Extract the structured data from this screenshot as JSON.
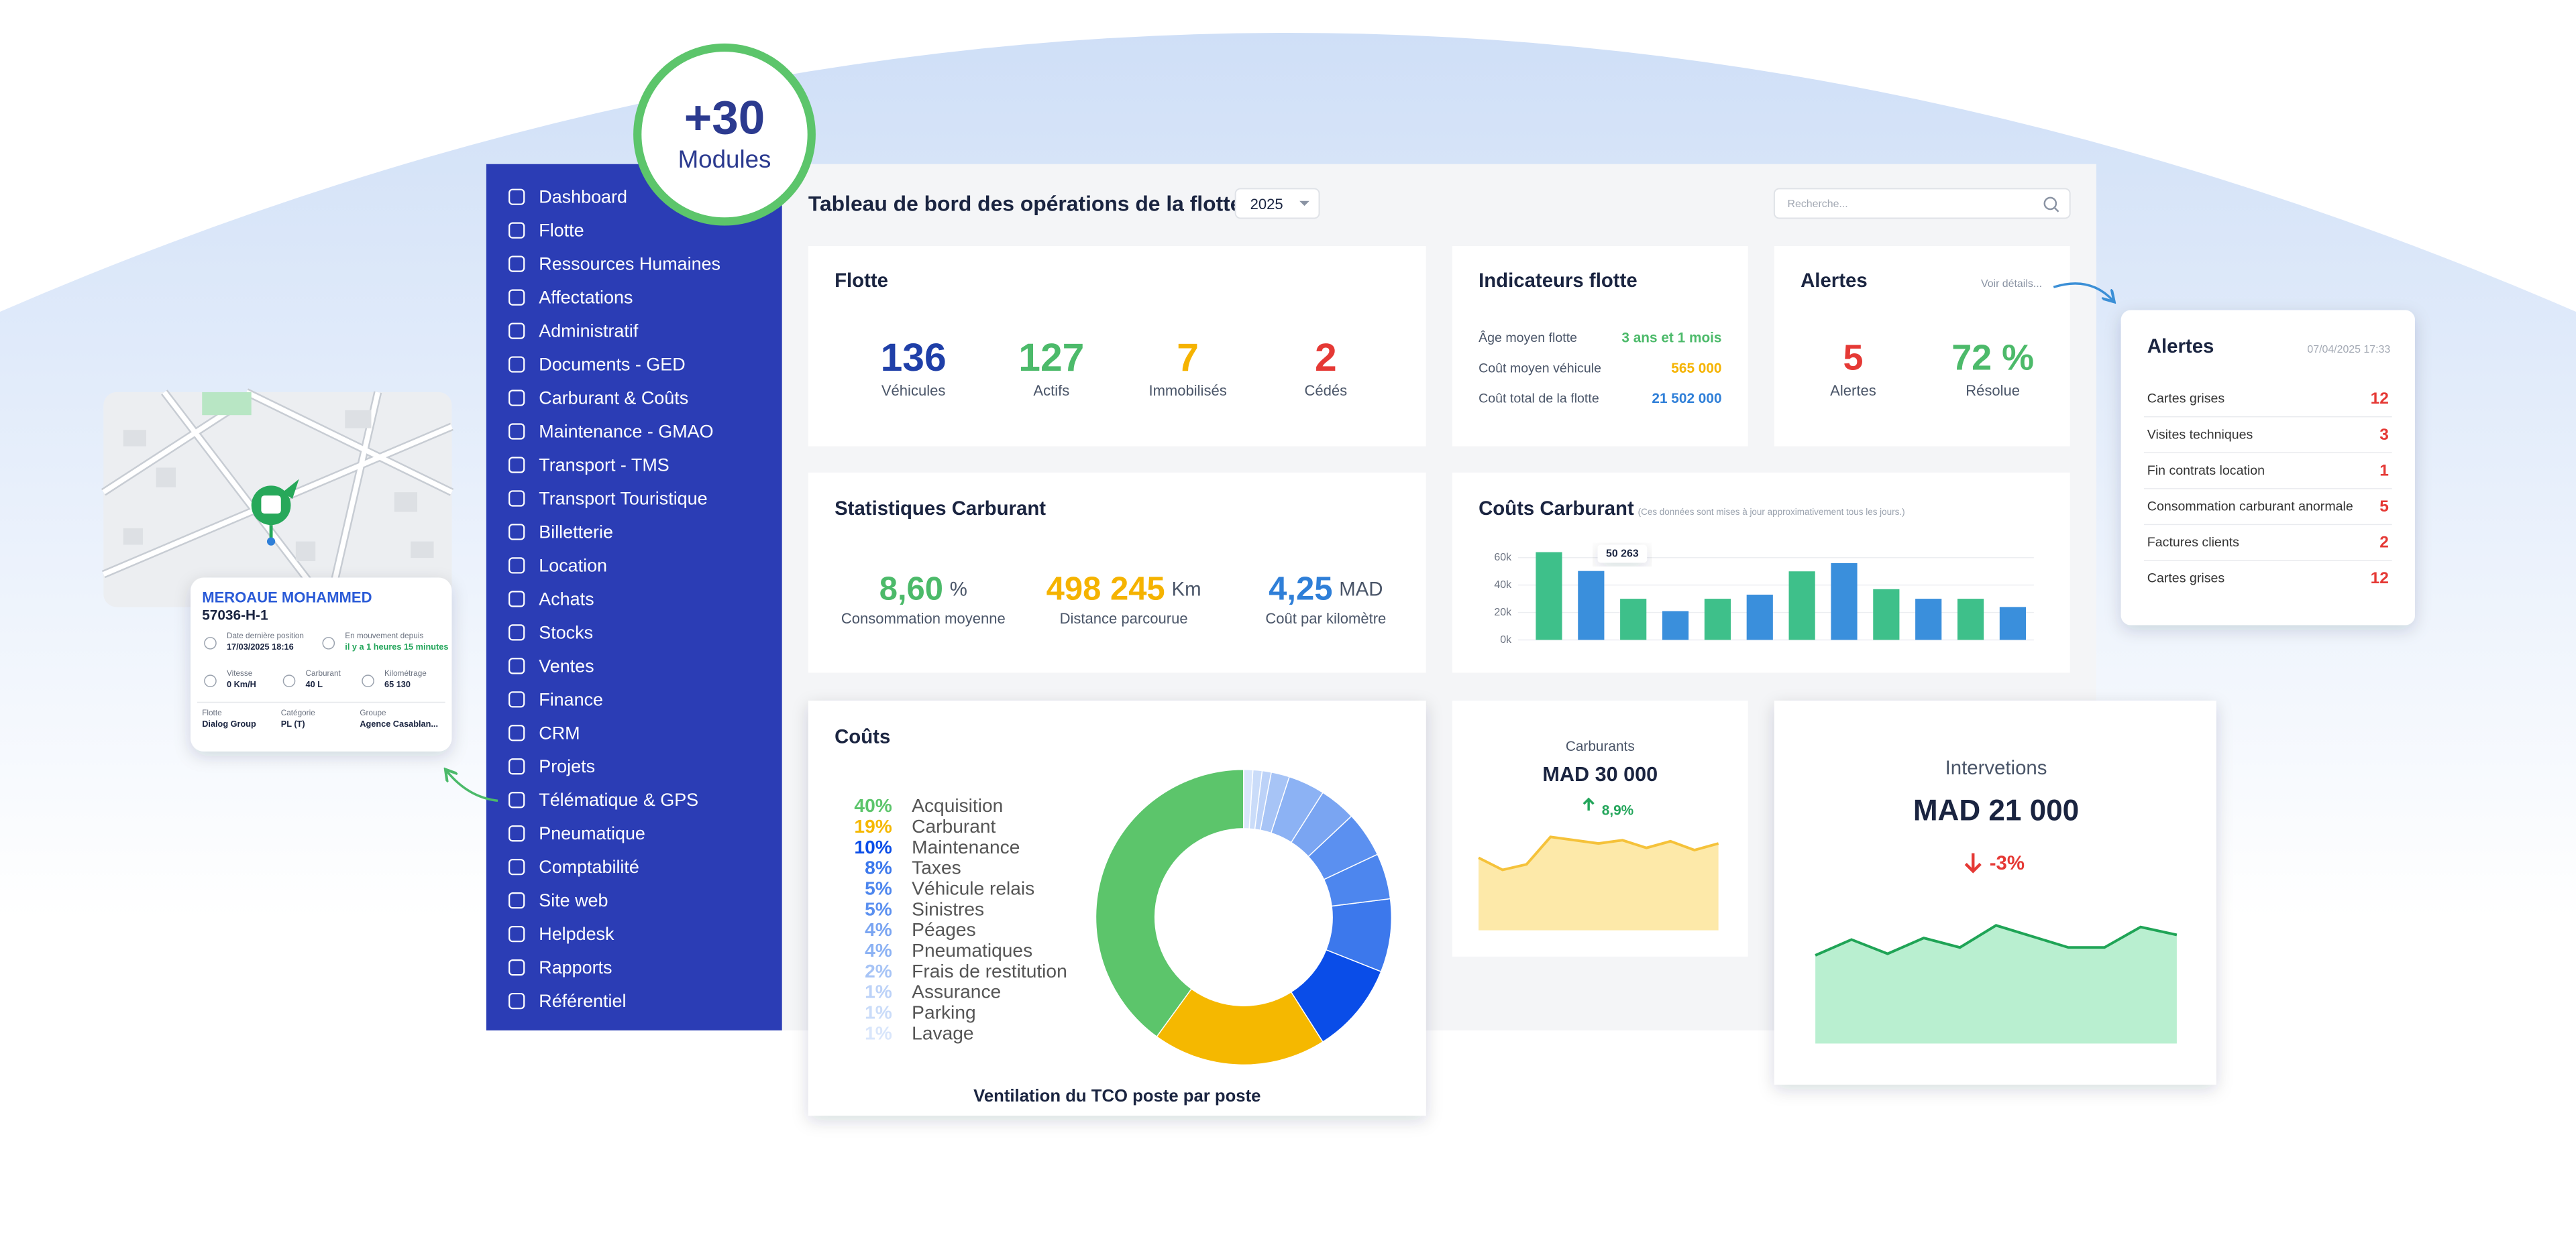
{
  "badge": {
    "value": "+30",
    "label": "Modules"
  },
  "sidebar": {
    "items": [
      "Dashboard",
      "Flotte",
      "Ressources Humaines",
      "Affectations",
      "Administratif",
      "Documents - GED",
      "Carburant & Coûts",
      "Maintenance - GMAO",
      "Transport - TMS",
      "Transport Touristique",
      "Billetterie",
      "Location",
      "Achats",
      "Stocks",
      "Ventes",
      "Finance",
      "CRM",
      "Projets",
      "Télématique & GPS",
      "Pneumatique",
      "Comptabilité",
      "Site web",
      "Helpdesk",
      "Rapports",
      "Référentiel"
    ]
  },
  "header": {
    "title": "Tableau de bord des opérations de la flotte",
    "year": "2025",
    "search_placeholder": "Recherche..."
  },
  "fleet_card": {
    "title": "Flotte",
    "stats": [
      {
        "value": "136",
        "label": "Véhicules",
        "color": "#1f3fa8"
      },
      {
        "value": "127",
        "label": "Actifs",
        "color": "#4cba6a"
      },
      {
        "value": "7",
        "label": "Immobilisés",
        "color": "#f5b300"
      },
      {
        "value": "2",
        "label": "Cédés",
        "color": "#e53935"
      }
    ]
  },
  "indicators_card": {
    "title": "Indicateurs flotte",
    "rows": [
      {
        "label": "Âge moyen flotte",
        "value": "3 ans et 1 mois",
        "color": "#4cba6a"
      },
      {
        "label": "Coût moyen véhicule",
        "value": "565 000",
        "color": "#f5b300"
      },
      {
        "label": "Coût total de la flotte",
        "value": "21 502 000",
        "color": "#2f7fd8"
      }
    ]
  },
  "alerts_card": {
    "title": "Alertes",
    "link": "Voir détails...",
    "stats": [
      {
        "value": "5",
        "label": "Alertes",
        "color": "#e53935"
      },
      {
        "value": "72 %",
        "label": "Résolue",
        "color": "#4cba6a"
      }
    ]
  },
  "fuel_stats_card": {
    "title": "Statistiques Carburant",
    "stats": [
      {
        "value": "8,60",
        "unit": "%",
        "label": "Consommation moyenne",
        "color": "#4cba6a"
      },
      {
        "value": "498 245",
        "unit": "Km",
        "label": "Distance parcourue",
        "color": "#f5b300"
      },
      {
        "value": "4,25",
        "unit": "MAD",
        "label": "Coût par kilomètre",
        "color": "#2f7fd8"
      }
    ]
  },
  "fuel_card": {
    "title": "Carburants",
    "amount": "MAD 30 000",
    "trend": "8,9%"
  },
  "interventions_card": {
    "title": "Intervetions",
    "amount": "MAD 21 000",
    "trend": "-3%"
  },
  "alerts_popup": {
    "title": "Alertes",
    "date": "07/04/2025 17:33",
    "rows": [
      {
        "label": "Cartes grises",
        "value": "12"
      },
      {
        "label": "Visites techniques",
        "value": "3"
      },
      {
        "label": "Fin contrats location",
        "value": "1"
      },
      {
        "label": "Consommation carburant anormale",
        "value": "5"
      },
      {
        "label": "Factures clients",
        "value": "2"
      },
      {
        "label": "Cartes grises",
        "value": "12"
      }
    ]
  },
  "vehicle_card": {
    "driver": "MEROAUE MOHAMMED",
    "plate": "57036-H-1",
    "fields": [
      {
        "label": "Date dernière position",
        "value": "17/03/2025 18:16"
      },
      {
        "label": "En mouvement depuis",
        "value": "il y a 1 heures 15 minutes"
      },
      {
        "label": "Vitesse",
        "value": "0 Km/H"
      },
      {
        "label": "Carburant",
        "value": "40 L"
      },
      {
        "label": "Kilométrage",
        "value": "65 130"
      },
      {
        "label": "Flotte",
        "value": "Dialog Group"
      },
      {
        "label": "Catégorie",
        "value": "PL (T)"
      },
      {
        "label": "Groupe",
        "value": "Agence Casablan..."
      }
    ]
  },
  "chart_data": [
    {
      "type": "bar",
      "title": "Coûts Carburant",
      "subtitle": "(Ces données sont mises à jour approximativement tous les jours.)",
      "values": [
        64000,
        50263,
        30000,
        21000,
        30000,
        33000,
        50000,
        56000,
        37000,
        30000,
        30000,
        24000
      ],
      "value_labels": [
        null,
        "50 263",
        null,
        null,
        null,
        null,
        null,
        null,
        null,
        null,
        null,
        null
      ],
      "colors": [
        "#3ec08a",
        "#3a8fdc",
        "#3ec08a",
        "#3a8fdc",
        "#3ec08a",
        "#3a8fdc",
        "#3ec08a",
        "#3a8fdc",
        "#3ec08a",
        "#3a8fdc",
        "#3ec08a",
        "#3a8fdc"
      ],
      "ylim": [
        0,
        70000
      ],
      "yticks": [
        {
          "value": 0,
          "label": "0k"
        },
        {
          "value": 20000,
          "label": "20k"
        },
        {
          "value": 40000,
          "label": "40k"
        },
        {
          "value": 60000,
          "label": "60k"
        }
      ],
      "grid": true
    },
    {
      "type": "pie",
      "title": "Coûts",
      "caption": "Ventilation du TCO poste par poste",
      "categories": [
        "Acquisition",
        "Carburant",
        "Maintenance",
        "Taxes",
        "Véhicule relais",
        "Sinistres",
        "Péages",
        "Pneumatiques",
        "Frais de restitution",
        "Assurance",
        "Parking",
        "Lavage"
      ],
      "values": [
        40,
        19,
        10,
        8,
        5,
        5,
        4,
        4,
        2,
        1,
        1,
        1
      ],
      "value_labels": [
        "40%",
        "19%",
        "10%",
        "8%",
        "5%",
        "5%",
        "4%",
        "4%",
        "2%",
        "1%",
        "1%",
        "1%"
      ],
      "colors": [
        "#5cc56b",
        "#f5b800",
        "#0a4de8",
        "#3c78ec",
        "#4d86ee",
        "#5b90f0",
        "#7aa5f2",
        "#8cb2f4",
        "#a7c4f6",
        "#bcd2f8",
        "#cadcf9",
        "#d9e6fb"
      ]
    },
    {
      "type": "area",
      "values": [
        66,
        55,
        60,
        85,
        82,
        79,
        82,
        75,
        81,
        73,
        79
      ],
      "ylim": [
        0,
        100
      ],
      "color": "#f5c23a",
      "fill": "#fde9a9"
    },
    {
      "type": "area",
      "values": [
        56,
        66,
        57,
        67,
        61,
        75,
        68,
        61,
        61,
        74,
        69
      ],
      "ylim": [
        0,
        100
      ],
      "color": "#1fa456",
      "fill": "#b9efd0"
    }
  ]
}
